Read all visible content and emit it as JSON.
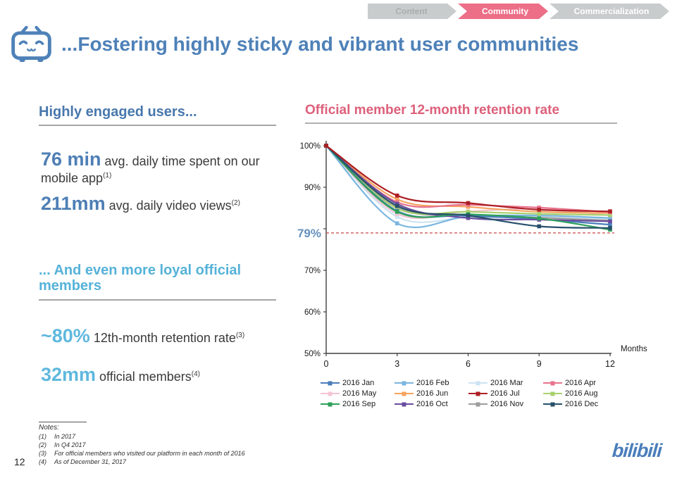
{
  "header": {
    "tabs": [
      {
        "label": "Content",
        "active": false
      },
      {
        "label": "Community",
        "active": true
      },
      {
        "label": "Commercialization",
        "active": false
      }
    ],
    "active_color": "#ec6e87",
    "inactive_color": "#c9cccc"
  },
  "title": {
    "text": "...Fostering highly sticky and vibrant user communities",
    "color": "#4e81b8"
  },
  "left_panel": {
    "section1": {
      "heading": "Highly engaged users...",
      "stats": [
        {
          "value": "76 min",
          "desc": " avg. daily time spent on our mobile app",
          "note_ref": "(1)"
        },
        {
          "value": "211mm",
          "desc": " avg. daily video views",
          "note_ref": "(2)"
        }
      ]
    },
    "section2": {
      "heading": "... And even more loyal official members",
      "stats": [
        {
          "value": "~80%",
          "desc": " 12th-month retention rate",
          "note_ref": "(3)"
        },
        {
          "value": "32mm",
          "desc": " official members",
          "note_ref": "(4)"
        }
      ]
    }
  },
  "chart": {
    "title": "Official member 12-month retention rate"
  },
  "chart_data": {
    "type": "line",
    "title": "Official member 12-month retention rate",
    "x": [
      0,
      3,
      6,
      9,
      12
    ],
    "xlabel": "Months",
    "ylabel": "",
    "ylim": [
      50,
      100
    ],
    "yticks": [
      50,
      60,
      70,
      80,
      90,
      100
    ],
    "ytick_labels": [
      "50%",
      "60%",
      "70%",
      "",
      "90%",
      "100%"
    ],
    "xticks": [
      0,
      3,
      6,
      9,
      12
    ],
    "grid": false,
    "legend_position": "bottom",
    "annotation": {
      "label": "79%",
      "value": 79,
      "line_color": "#c84646",
      "label_color": "#6590bd",
      "style": "dashed"
    },
    "series": [
      {
        "name": "2016 Jan",
        "color": "#4a7ebb",
        "values": [
          100,
          84.3,
          83.2,
          82.3,
          81.0
        ]
      },
      {
        "name": "2016 Feb",
        "color": "#7ab6e0",
        "values": [
          100,
          81.3,
          83.0,
          83.2,
          82.6
        ]
      },
      {
        "name": "2016 Mar",
        "color": "#cde3f1",
        "values": [
          100,
          82.9,
          82.7,
          83.0,
          82.4
        ]
      },
      {
        "name": "2016 Apr",
        "color": "#e8738e",
        "values": [
          100,
          86.4,
          85.8,
          85.1,
          84.0
        ]
      },
      {
        "name": "2016 May",
        "color": "#f3c4d6",
        "values": [
          100,
          83.6,
          84.2,
          84.8,
          83.2
        ]
      },
      {
        "name": "2016 Jun",
        "color": "#f5a35e",
        "values": [
          100,
          87.1,
          85.3,
          84.1,
          83.8
        ]
      },
      {
        "name": "2016 Jul",
        "color": "#ad1f24",
        "values": [
          100,
          88.0,
          86.2,
          84.6,
          84.2
        ]
      },
      {
        "name": "2016 Aug",
        "color": "#a9d16e",
        "values": [
          100,
          84.9,
          84.1,
          83.6,
          83.3
        ]
      },
      {
        "name": "2016 Sep",
        "color": "#2da05a",
        "values": [
          100,
          84.1,
          83.5,
          82.5,
          79.8
        ]
      },
      {
        "name": "2016 Oct",
        "color": "#6a4c9e",
        "values": [
          100,
          86.0,
          82.6,
          82.2,
          81.8
        ]
      },
      {
        "name": "2016 Nov",
        "color": "#9d9d9d",
        "values": [
          100,
          85.1,
          83.3,
          82.7,
          82.0
        ]
      },
      {
        "name": "2016 Dec",
        "color": "#27506b",
        "values": [
          100,
          85.5,
          83.2,
          80.6,
          80.2
        ]
      }
    ]
  },
  "notes": {
    "heading": "Notes:",
    "items": [
      {
        "ref": "(1)",
        "text": "In 2017"
      },
      {
        "ref": "(2)",
        "text": "In Q4 2017"
      },
      {
        "ref": "(3)",
        "text": "For official members who visited our platform in each month of 2016"
      },
      {
        "ref": "(4)",
        "text": "As of December 31, 2017"
      }
    ]
  },
  "footer": {
    "page_number": "12",
    "logo_text": "bilibili"
  }
}
